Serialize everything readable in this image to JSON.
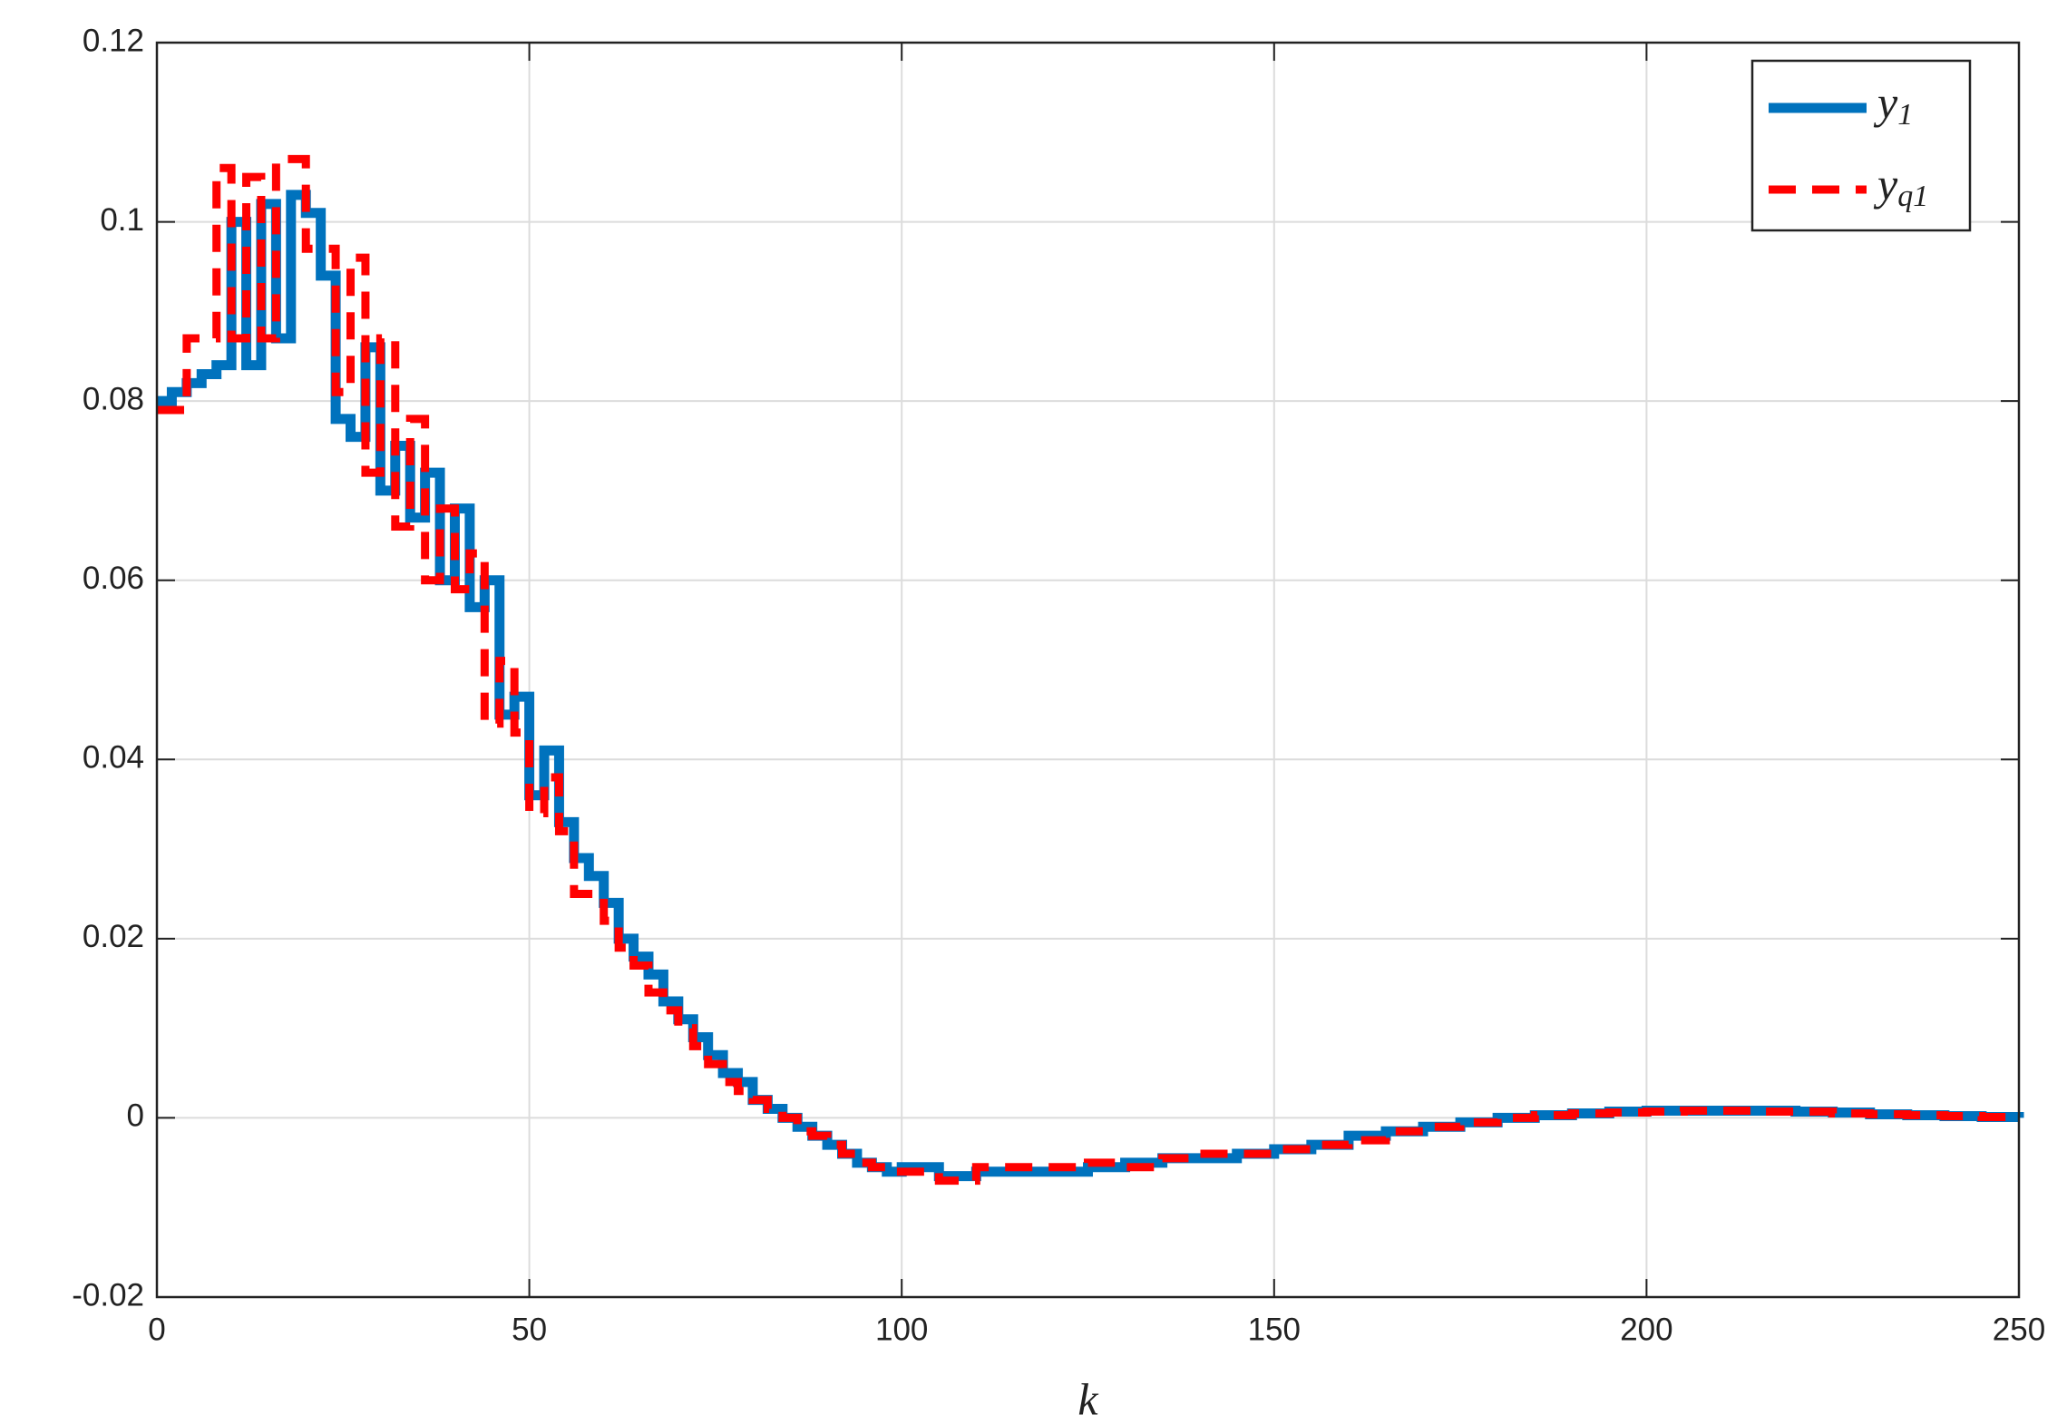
{
  "chart_data": {
    "type": "line",
    "drawstyle": "steps-post",
    "xlabel": "k",
    "x": [
      0,
      2,
      4,
      6,
      8,
      10,
      12,
      14,
      16,
      18,
      20,
      22,
      24,
      26,
      28,
      30,
      32,
      34,
      36,
      38,
      40,
      42,
      44,
      46,
      48,
      50,
      52,
      54,
      56,
      58,
      60,
      62,
      64,
      66,
      68,
      70,
      72,
      74,
      76,
      78,
      80,
      82,
      84,
      86,
      88,
      90,
      92,
      94,
      96,
      98,
      100,
      105,
      110,
      115,
      120,
      125,
      130,
      135,
      140,
      145,
      150,
      155,
      160,
      165,
      170,
      175,
      180,
      185,
      190,
      195,
      200,
      205,
      210,
      215,
      220,
      225,
      230,
      235,
      240,
      245,
      250
    ],
    "series": [
      {
        "name": "y1",
        "color": "#0072bd",
        "dash": false,
        "values": [
          0.08,
          0.081,
          0.082,
          0.083,
          0.084,
          0.1,
          0.084,
          0.102,
          0.087,
          0.103,
          0.101,
          0.094,
          0.078,
          0.076,
          0.086,
          0.07,
          0.075,
          0.067,
          0.072,
          0.06,
          0.068,
          0.057,
          0.06,
          0.045,
          0.047,
          0.036,
          0.041,
          0.033,
          0.029,
          0.027,
          0.024,
          0.02,
          0.018,
          0.016,
          0.013,
          0.011,
          0.009,
          0.007,
          0.005,
          0.004,
          0.002,
          0.001,
          0.0,
          -0.001,
          -0.002,
          -0.003,
          -0.004,
          -0.005,
          -0.0055,
          -0.006,
          -0.0055,
          -0.0065,
          -0.006,
          -0.006,
          -0.006,
          -0.0055,
          -0.005,
          -0.0045,
          -0.0045,
          -0.004,
          -0.0035,
          -0.003,
          -0.002,
          -0.0015,
          -0.001,
          -0.0005,
          0.0,
          0.0003,
          0.0005,
          0.0007,
          0.0008,
          0.0008,
          0.0008,
          0.0008,
          0.0007,
          0.0006,
          0.0004,
          0.0003,
          0.0002,
          0.0001,
          0.0
        ]
      },
      {
        "name": "yq1",
        "color": "#ff0000",
        "dash": true,
        "values": [
          0.079,
          0.079,
          0.087,
          0.087,
          0.106,
          0.087,
          0.105,
          0.087,
          0.107,
          0.107,
          0.097,
          0.097,
          0.081,
          0.096,
          0.072,
          0.087,
          0.066,
          0.078,
          0.06,
          0.068,
          0.059,
          0.063,
          0.044,
          0.051,
          0.043,
          0.034,
          0.038,
          0.032,
          0.025,
          0.025,
          0.022,
          0.019,
          0.017,
          0.014,
          0.012,
          0.01,
          0.008,
          0.006,
          0.004,
          0.003,
          0.002,
          0.001,
          0.0,
          -0.0015,
          -0.002,
          -0.003,
          -0.004,
          -0.005,
          -0.0055,
          -0.006,
          -0.006,
          -0.007,
          -0.0055,
          -0.0055,
          -0.0055,
          -0.005,
          -0.0055,
          -0.0045,
          -0.004,
          -0.004,
          -0.0035,
          -0.003,
          -0.0025,
          -0.0015,
          -0.001,
          -0.0005,
          0.0,
          0.0003,
          0.0005,
          0.0006,
          0.0007,
          0.0008,
          0.0008,
          0.0007,
          0.0007,
          0.0005,
          0.0004,
          0.0003,
          0.0002,
          0.0001,
          -0.0001
        ]
      }
    ],
    "xlim": [
      0,
      250
    ],
    "xticks": [
      0,
      50,
      100,
      150,
      200,
      250
    ],
    "ylim": [
      -0.02,
      0.12
    ],
    "yticks": [
      -0.02,
      0,
      0.02,
      0.04,
      0.06,
      0.08,
      0.1,
      0.12
    ],
    "grid": true,
    "legend": "upper right"
  }
}
